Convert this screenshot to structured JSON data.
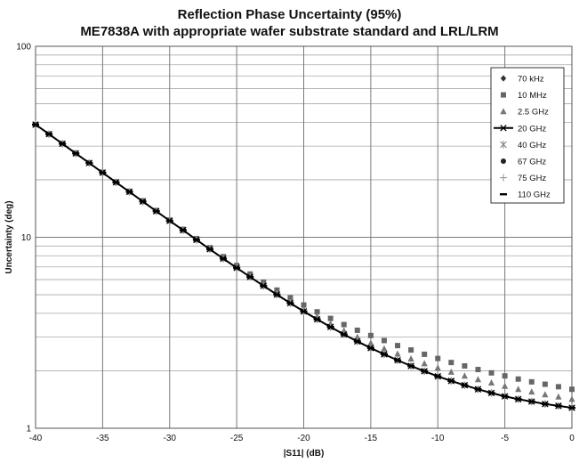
{
  "chart_data": {
    "type": "scatter",
    "title": "Reflection Phase Uncertainty (95%)",
    "subtitle": "ME7838A with appropriate wafer substrate standard and LRL/LRM",
    "xlabel": "|S11| (dB)",
    "ylabel": "Uncertainty (deg)",
    "xlim": [
      -40,
      0
    ],
    "ylim": [
      1,
      100
    ],
    "yscale": "log",
    "xticks": [
      -40,
      -35,
      -30,
      -25,
      -20,
      -15,
      -10,
      -5,
      0
    ],
    "yticks": [
      1,
      10,
      100
    ],
    "grid": true,
    "legend_position": "top-right",
    "x": [
      -40,
      -39,
      -38,
      -37,
      -36,
      -35,
      -34,
      -33,
      -32,
      -31,
      -30,
      -29,
      -28,
      -27,
      -26,
      -25,
      -24,
      -23,
      -22,
      -21,
      -20,
      -19,
      -18,
      -17,
      -16,
      -15,
      -14,
      -13,
      -12,
      -11,
      -10,
      -9,
      -8,
      -7,
      -6,
      -5,
      -4,
      -3,
      -2,
      -1,
      0
    ],
    "series": [
      {
        "name": "70 kHz",
        "marker": "diamond",
        "color": "#333333",
        "values": [
          38.9,
          34.7,
          30.9,
          27.5,
          24.5,
          21.8,
          19.4,
          17.3,
          15.4,
          13.7,
          12.2,
          10.9,
          9.7,
          8.66,
          7.73,
          6.92,
          6.2,
          5.57,
          5.01,
          4.52,
          4.09,
          3.72,
          3.39,
          3.1,
          2.85,
          2.63,
          2.44,
          2.27,
          2.12,
          1.99,
          1.87,
          1.77,
          1.68,
          1.6,
          1.53,
          1.47,
          1.42,
          1.38,
          1.34,
          1.31,
          1.28
        ]
      },
      {
        "name": "10 MHz",
        "marker": "square",
        "color": "#666666",
        "values": [
          38.9,
          34.7,
          30.9,
          27.5,
          24.5,
          21.9,
          19.5,
          17.4,
          15.5,
          13.8,
          12.3,
          11.0,
          9.85,
          8.82,
          7.92,
          7.12,
          6.42,
          5.82,
          5.29,
          4.82,
          4.42,
          4.07,
          3.76,
          3.49,
          3.26,
          3.06,
          2.88,
          2.71,
          2.57,
          2.44,
          2.32,
          2.21,
          2.12,
          2.03,
          1.95,
          1.88,
          1.81,
          1.75,
          1.7,
          1.65,
          1.6
        ]
      },
      {
        "name": "2.5 GHz",
        "marker": "triangle",
        "color": "#777777",
        "values": [
          38.9,
          34.7,
          30.9,
          27.5,
          24.5,
          21.8,
          19.4,
          17.3,
          15.4,
          13.7,
          12.2,
          10.9,
          9.72,
          8.7,
          7.78,
          6.98,
          6.27,
          5.65,
          5.1,
          4.62,
          4.2,
          3.84,
          3.52,
          3.24,
          3.0,
          2.79,
          2.61,
          2.45,
          2.31,
          2.18,
          2.07,
          1.97,
          1.88,
          1.8,
          1.73,
          1.66,
          1.6,
          1.55,
          1.5,
          1.46,
          1.42
        ]
      },
      {
        "name": "20 GHz",
        "marker": "x-line",
        "color": "#000000",
        "values": [
          38.9,
          34.7,
          30.9,
          27.5,
          24.5,
          21.8,
          19.4,
          17.3,
          15.4,
          13.7,
          12.2,
          10.9,
          9.7,
          8.66,
          7.73,
          6.92,
          6.2,
          5.57,
          5.01,
          4.52,
          4.09,
          3.72,
          3.39,
          3.1,
          2.85,
          2.63,
          2.44,
          2.27,
          2.12,
          1.99,
          1.87,
          1.77,
          1.68,
          1.6,
          1.53,
          1.47,
          1.42,
          1.38,
          1.34,
          1.31,
          1.28
        ]
      },
      {
        "name": "40 GHz",
        "marker": "asterisk",
        "color": "#888888",
        "values": [
          38.9,
          34.7,
          30.9,
          27.5,
          24.5,
          21.8,
          19.4,
          17.3,
          15.4,
          13.7,
          12.2,
          10.9,
          9.7,
          8.66,
          7.73,
          6.92,
          6.2,
          5.57,
          5.01,
          4.52,
          4.09,
          3.72,
          3.39,
          3.1,
          2.85,
          2.63,
          2.44,
          2.27,
          2.12,
          1.99,
          1.87,
          1.77,
          1.68,
          1.6,
          1.53,
          1.47,
          1.42,
          1.38,
          1.34,
          1.31,
          1.28
        ]
      },
      {
        "name": "67 GHz",
        "marker": "circle",
        "color": "#222222",
        "values": [
          38.9,
          34.7,
          30.9,
          27.5,
          24.5,
          21.8,
          19.4,
          17.3,
          15.4,
          13.7,
          12.2,
          10.9,
          9.7,
          8.66,
          7.73,
          6.92,
          6.2,
          5.57,
          5.01,
          4.52,
          4.09,
          3.72,
          3.39,
          3.1,
          2.85,
          2.63,
          2.44,
          2.27,
          2.12,
          1.99,
          1.87,
          1.77,
          1.68,
          1.6,
          1.53,
          1.47,
          1.42,
          1.38,
          1.34,
          1.31,
          1.28
        ]
      },
      {
        "name": "75 GHz",
        "marker": "plus",
        "color": "#999999",
        "values": [
          38.9,
          34.7,
          30.9,
          27.5,
          24.5,
          21.8,
          19.4,
          17.3,
          15.4,
          13.7,
          12.2,
          10.9,
          9.7,
          8.66,
          7.73,
          6.92,
          6.2,
          5.57,
          5.01,
          4.52,
          4.09,
          3.72,
          3.39,
          3.1,
          2.85,
          2.63,
          2.44,
          2.27,
          2.12,
          1.99,
          1.87,
          1.77,
          1.68,
          1.6,
          1.53,
          1.47,
          1.42,
          1.38,
          1.34,
          1.31,
          1.28
        ]
      },
      {
        "name": "110 GHz",
        "marker": "dash",
        "color": "#000000",
        "values": [
          38.9,
          34.7,
          30.9,
          27.5,
          24.5,
          21.8,
          19.4,
          17.3,
          15.4,
          13.7,
          12.2,
          10.9,
          9.7,
          8.66,
          7.73,
          6.92,
          6.2,
          5.57,
          5.01,
          4.52,
          4.09,
          3.72,
          3.39,
          3.1,
          2.85,
          2.63,
          2.44,
          2.27,
          2.12,
          1.99,
          1.87,
          1.77,
          1.68,
          1.6,
          1.53,
          1.47,
          1.42,
          1.38,
          1.34,
          1.31,
          1.28
        ]
      }
    ]
  }
}
